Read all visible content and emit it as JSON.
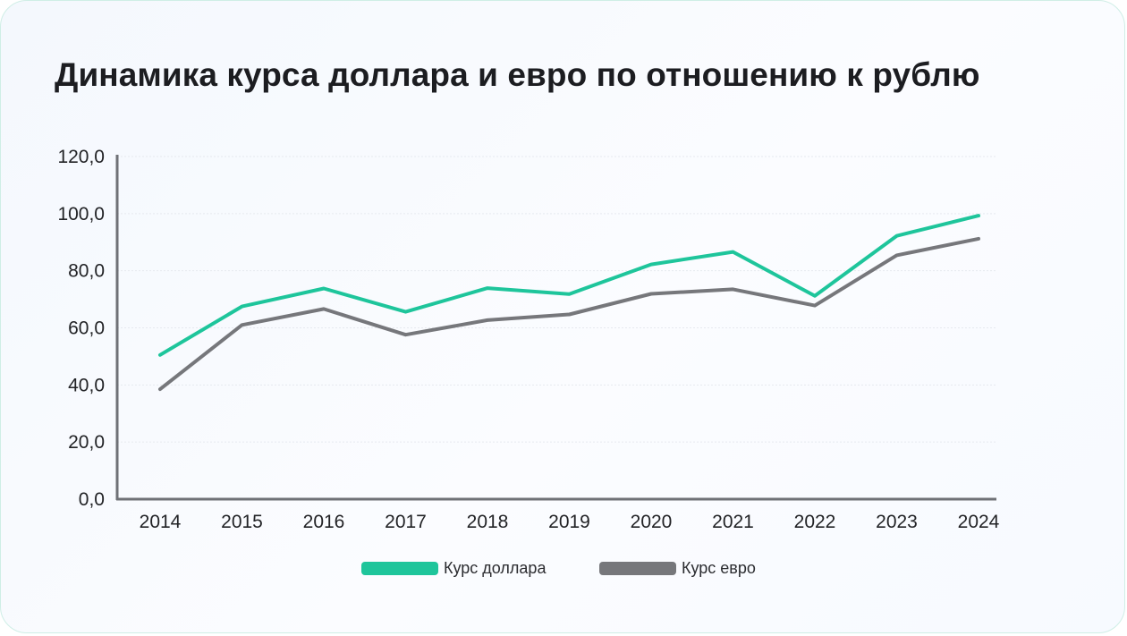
{
  "title": "Динамика курса доллара и евро по отношению к рублю",
  "chart_data": {
    "type": "line",
    "title": "Динамика курса доллара и евро по отношению к рублю",
    "xlabel": "",
    "ylabel": "",
    "categories": [
      "2014",
      "2015",
      "2016",
      "2017",
      "2018",
      "2019",
      "2020",
      "2021",
      "2022",
      "2023",
      "2024"
    ],
    "ylim": [
      0,
      120
    ],
    "yticks": [
      0,
      20,
      40,
      60,
      80,
      100,
      120
    ],
    "ytick_labels": [
      "0,0",
      "20,0",
      "40,0",
      "60,0",
      "80,0",
      "100,0",
      "120,0"
    ],
    "grid": true,
    "legend_position": "bottom",
    "series": [
      {
        "name": "Курс доллара",
        "color": "#1ec59b",
        "values": [
          50.5,
          67.5,
          73.8,
          65.6,
          73.9,
          71.8,
          82.2,
          86.6,
          71.2,
          92.2,
          99.3
        ]
      },
      {
        "name": "Курс евро",
        "color": "#76777b",
        "values": [
          38.5,
          61.0,
          66.6,
          57.6,
          62.7,
          64.7,
          71.9,
          73.5,
          67.8,
          85.4,
          91.2
        ]
      }
    ]
  }
}
